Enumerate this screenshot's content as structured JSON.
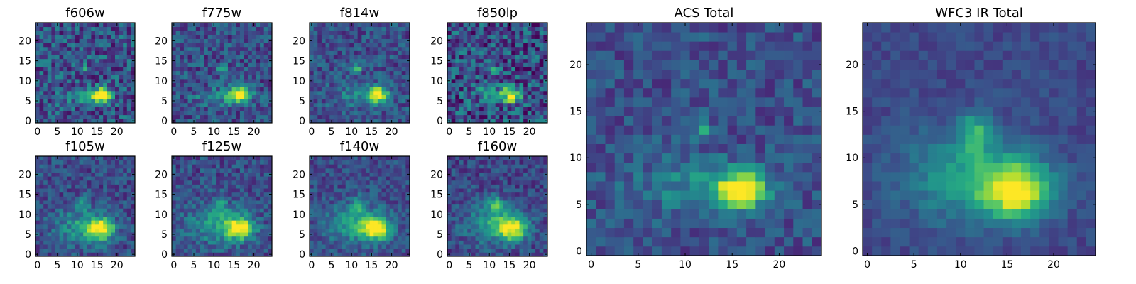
{
  "figure": {
    "panels": [
      {
        "title": "f606w",
        "x_ticks": [
          "0",
          "5",
          "10",
          "15",
          "20"
        ],
        "y_ticks": [
          "0",
          "5",
          "10",
          "15",
          "20"
        ]
      },
      {
        "title": "f775w",
        "x_ticks": [
          "0",
          "5",
          "10",
          "15",
          "20"
        ],
        "y_ticks": [
          "0",
          "5",
          "10",
          "15",
          "20"
        ]
      },
      {
        "title": "f814w",
        "x_ticks": [
          "0",
          "5",
          "10",
          "15",
          "20"
        ],
        "y_ticks": [
          "0",
          "5",
          "10",
          "15",
          "20"
        ]
      },
      {
        "title": "f850lp",
        "x_ticks": [
          "0",
          "5",
          "10",
          "15",
          "20"
        ],
        "y_ticks": [
          "0",
          "5",
          "10",
          "15",
          "20"
        ]
      },
      {
        "title": "f105w",
        "x_ticks": [
          "0",
          "5",
          "10",
          "15",
          "20"
        ],
        "y_ticks": [
          "0",
          "5",
          "10",
          "15",
          "20"
        ]
      },
      {
        "title": "f125w",
        "x_ticks": [
          "0",
          "5",
          "10",
          "15",
          "20"
        ],
        "y_ticks": [
          "0",
          "5",
          "10",
          "15",
          "20"
        ]
      },
      {
        "title": "f140w",
        "x_ticks": [
          "0",
          "5",
          "10",
          "15",
          "20"
        ],
        "y_ticks": [
          "0",
          "5",
          "10",
          "15",
          "20"
        ]
      },
      {
        "title": "f160w",
        "x_ticks": [
          "0",
          "5",
          "10",
          "15",
          "20"
        ],
        "y_ticks": [
          "0",
          "5",
          "10",
          "15",
          "20"
        ]
      },
      {
        "title": "ACS Total",
        "x_ticks": [
          "0",
          "5",
          "10",
          "15",
          "20"
        ],
        "y_ticks": [
          "0",
          "5",
          "10",
          "15",
          "20"
        ]
      },
      {
        "title": "WFC3 IR Total",
        "x_ticks": [
          "0",
          "5",
          "10",
          "15",
          "20"
        ],
        "y_ticks": [
          "0",
          "5",
          "10",
          "15",
          "20"
        ]
      }
    ]
  },
  "chart_data": [
    {
      "type": "heatmap",
      "title": "f606w",
      "colormap": "viridis",
      "shape": [
        25,
        25
      ],
      "xlim": [
        -0.5,
        24.5
      ],
      "ylim": [
        -0.5,
        24.5
      ],
      "noise": 0.22,
      "background": 0.26,
      "sources": [
        {
          "x": 16,
          "y": 6.5,
          "amp": 0.78,
          "sx": 1.7,
          "sy": 1.3
        },
        {
          "x": 11.5,
          "y": 13,
          "amp": 0.35,
          "sx": 0.8,
          "sy": 0.8
        },
        {
          "x": 11,
          "y": 6,
          "amp": 0.2,
          "sx": 3.5,
          "sy": 1.2
        }
      ]
    },
    {
      "type": "heatmap",
      "title": "f775w",
      "colormap": "viridis",
      "shape": [
        25,
        25
      ],
      "xlim": [
        -0.5,
        24.5
      ],
      "ylim": [
        -0.5,
        24.5
      ],
      "noise": 0.18,
      "background": 0.25,
      "sources": [
        {
          "x": 16.5,
          "y": 6.5,
          "amp": 0.8,
          "sx": 1.8,
          "sy": 1.4
        },
        {
          "x": 12,
          "y": 13,
          "amp": 0.4,
          "sx": 0.7,
          "sy": 0.7
        },
        {
          "x": 11,
          "y": 6,
          "amp": 0.22,
          "sx": 4,
          "sy": 1.5
        }
      ]
    },
    {
      "type": "heatmap",
      "title": "f814w",
      "colormap": "viridis",
      "shape": [
        25,
        25
      ],
      "xlim": [
        -0.5,
        24.5
      ],
      "ylim": [
        -0.5,
        24.5
      ],
      "noise": 0.16,
      "background": 0.25,
      "sources": [
        {
          "x": 16.5,
          "y": 6.5,
          "amp": 0.8,
          "sx": 1.8,
          "sy": 1.4
        },
        {
          "x": 11.5,
          "y": 13,
          "amp": 0.42,
          "sx": 0.7,
          "sy": 0.7
        },
        {
          "x": 11,
          "y": 6.5,
          "amp": 0.22,
          "sx": 4,
          "sy": 1.8
        }
      ]
    },
    {
      "type": "heatmap",
      "title": "f850lp",
      "colormap": "viridis",
      "shape": [
        25,
        25
      ],
      "xlim": [
        -0.5,
        24.5
      ],
      "ylim": [
        -0.5,
        24.5
      ],
      "noise": 0.26,
      "background": 0.24,
      "sources": [
        {
          "x": 15.5,
          "y": 6.5,
          "amp": 0.78,
          "sx": 1.5,
          "sy": 1.3
        },
        {
          "x": 11.5,
          "y": 13,
          "amp": 0.38,
          "sx": 0.7,
          "sy": 0.7
        },
        {
          "x": 11,
          "y": 7,
          "amp": 0.2,
          "sx": 3.5,
          "sy": 2
        }
      ]
    },
    {
      "type": "heatmap",
      "title": "f105w",
      "colormap": "viridis",
      "shape": [
        25,
        25
      ],
      "xlim": [
        -0.5,
        24.5
      ],
      "ylim": [
        -0.5,
        24.5
      ],
      "noise": 0.15,
      "background": 0.24,
      "sources": [
        {
          "x": 16,
          "y": 6.5,
          "amp": 0.75,
          "sx": 2.2,
          "sy": 1.8
        },
        {
          "x": 11.5,
          "y": 12.5,
          "amp": 0.32,
          "sx": 1,
          "sy": 1.2
        },
        {
          "x": 11,
          "y": 7,
          "amp": 0.3,
          "sx": 4.5,
          "sy": 3
        }
      ]
    },
    {
      "type": "heatmap",
      "title": "f125w",
      "colormap": "viridis",
      "shape": [
        25,
        25
      ],
      "xlim": [
        -0.5,
        24.5
      ],
      "ylim": [
        -0.5,
        24.5
      ],
      "noise": 0.15,
      "background": 0.24,
      "sources": [
        {
          "x": 16.5,
          "y": 6.5,
          "amp": 0.72,
          "sx": 2.4,
          "sy": 1.9
        },
        {
          "x": 11.5,
          "y": 12.5,
          "amp": 0.32,
          "sx": 1.1,
          "sy": 1.3
        },
        {
          "x": 11,
          "y": 7.5,
          "amp": 0.32,
          "sx": 5,
          "sy": 3.2
        }
      ]
    },
    {
      "type": "heatmap",
      "title": "f140w",
      "colormap": "viridis",
      "shape": [
        25,
        25
      ],
      "xlim": [
        -0.5,
        24.5
      ],
      "ylim": [
        -0.5,
        24.5
      ],
      "noise": 0.13,
      "background": 0.24,
      "sources": [
        {
          "x": 16,
          "y": 6.5,
          "amp": 0.72,
          "sx": 2.5,
          "sy": 2
        },
        {
          "x": 11.5,
          "y": 12.5,
          "amp": 0.34,
          "sx": 1.1,
          "sy": 1.4
        },
        {
          "x": 11,
          "y": 7.5,
          "amp": 0.34,
          "sx": 5,
          "sy": 3.2
        }
      ]
    },
    {
      "type": "heatmap",
      "title": "f160w",
      "colormap": "viridis",
      "shape": [
        25,
        25
      ],
      "xlim": [
        -0.5,
        24.5
      ],
      "ylim": [
        -0.5,
        24.5
      ],
      "noise": 0.14,
      "background": 0.22,
      "sources": [
        {
          "x": 16,
          "y": 6.5,
          "amp": 0.7,
          "sx": 2.5,
          "sy": 2
        },
        {
          "x": 11.5,
          "y": 12.5,
          "amp": 0.36,
          "sx": 1.2,
          "sy": 1.5
        },
        {
          "x": 11,
          "y": 8,
          "amp": 0.34,
          "sx": 5,
          "sy": 3.5
        }
      ]
    },
    {
      "type": "heatmap",
      "title": "ACS Total",
      "colormap": "viridis",
      "shape": [
        25,
        25
      ],
      "xlim": [
        -0.5,
        24.5
      ],
      "ylim": [
        -0.5,
        24.5
      ],
      "noise": 0.13,
      "background": 0.25,
      "sources": [
        {
          "x": 16,
          "y": 6.5,
          "amp": 0.8,
          "sx": 1.8,
          "sy": 1.4
        },
        {
          "x": 12,
          "y": 13,
          "amp": 0.42,
          "sx": 0.7,
          "sy": 0.7
        },
        {
          "x": 11,
          "y": 7,
          "amp": 0.22,
          "sx": 4.5,
          "sy": 2
        }
      ]
    },
    {
      "type": "heatmap",
      "title": "WFC3 IR Total",
      "colormap": "viridis",
      "shape": [
        25,
        25
      ],
      "xlim": [
        -0.5,
        24.5
      ],
      "ylim": [
        -0.5,
        24.5
      ],
      "noise": 0.07,
      "background": 0.22,
      "sources": [
        {
          "x": 16,
          "y": 6.5,
          "amp": 0.72,
          "sx": 2.5,
          "sy": 2
        },
        {
          "x": 11.5,
          "y": 12.5,
          "amp": 0.36,
          "sx": 1.1,
          "sy": 1.5
        },
        {
          "x": 11,
          "y": 8,
          "amp": 0.34,
          "sx": 5,
          "sy": 3.5
        }
      ]
    }
  ]
}
